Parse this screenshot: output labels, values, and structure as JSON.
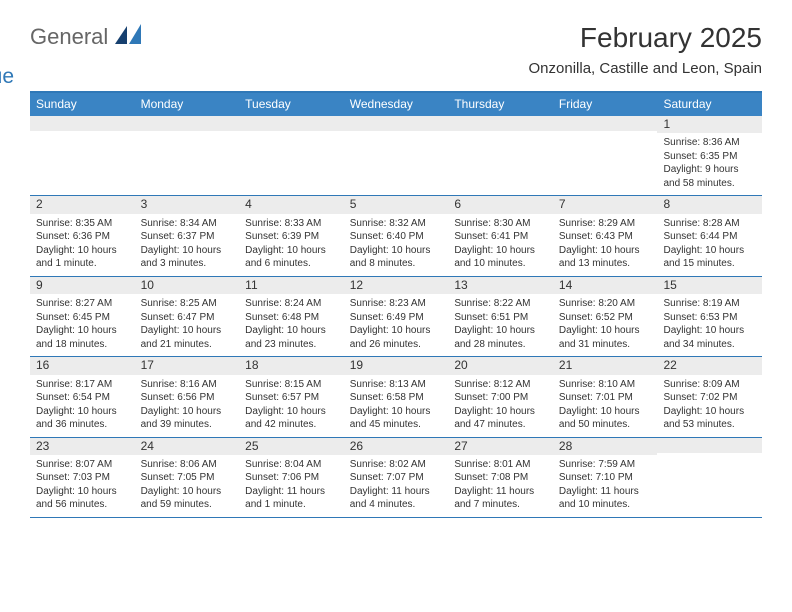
{
  "brand": {
    "word1": "General",
    "word2": "Blue"
  },
  "colors": {
    "header_bg": "#3a84c4",
    "header_border": "#2f78b7",
    "daynum_bg": "#ececec",
    "text": "#333333",
    "logo_gray": "#666666",
    "logo_blue": "#2f78b7",
    "page_bg": "#ffffff"
  },
  "title": "February 2025",
  "location": "Onzonilla, Castille and Leon, Spain",
  "day_names": [
    "Sunday",
    "Monday",
    "Tuesday",
    "Wednesday",
    "Thursday",
    "Friday",
    "Saturday"
  ],
  "weeks": [
    [
      {
        "n": "",
        "sr": "",
        "ss": "",
        "dl": ""
      },
      {
        "n": "",
        "sr": "",
        "ss": "",
        "dl": ""
      },
      {
        "n": "",
        "sr": "",
        "ss": "",
        "dl": ""
      },
      {
        "n": "",
        "sr": "",
        "ss": "",
        "dl": ""
      },
      {
        "n": "",
        "sr": "",
        "ss": "",
        "dl": ""
      },
      {
        "n": "",
        "sr": "",
        "ss": "",
        "dl": ""
      },
      {
        "n": "1",
        "sr": "Sunrise: 8:36 AM",
        "ss": "Sunset: 6:35 PM",
        "dl": "Daylight: 9 hours and 58 minutes."
      }
    ],
    [
      {
        "n": "2",
        "sr": "Sunrise: 8:35 AM",
        "ss": "Sunset: 6:36 PM",
        "dl": "Daylight: 10 hours and 1 minute."
      },
      {
        "n": "3",
        "sr": "Sunrise: 8:34 AM",
        "ss": "Sunset: 6:37 PM",
        "dl": "Daylight: 10 hours and 3 minutes."
      },
      {
        "n": "4",
        "sr": "Sunrise: 8:33 AM",
        "ss": "Sunset: 6:39 PM",
        "dl": "Daylight: 10 hours and 6 minutes."
      },
      {
        "n": "5",
        "sr": "Sunrise: 8:32 AM",
        "ss": "Sunset: 6:40 PM",
        "dl": "Daylight: 10 hours and 8 minutes."
      },
      {
        "n": "6",
        "sr": "Sunrise: 8:30 AM",
        "ss": "Sunset: 6:41 PM",
        "dl": "Daylight: 10 hours and 10 minutes."
      },
      {
        "n": "7",
        "sr": "Sunrise: 8:29 AM",
        "ss": "Sunset: 6:43 PM",
        "dl": "Daylight: 10 hours and 13 minutes."
      },
      {
        "n": "8",
        "sr": "Sunrise: 8:28 AM",
        "ss": "Sunset: 6:44 PM",
        "dl": "Daylight: 10 hours and 15 minutes."
      }
    ],
    [
      {
        "n": "9",
        "sr": "Sunrise: 8:27 AM",
        "ss": "Sunset: 6:45 PM",
        "dl": "Daylight: 10 hours and 18 minutes."
      },
      {
        "n": "10",
        "sr": "Sunrise: 8:25 AM",
        "ss": "Sunset: 6:47 PM",
        "dl": "Daylight: 10 hours and 21 minutes."
      },
      {
        "n": "11",
        "sr": "Sunrise: 8:24 AM",
        "ss": "Sunset: 6:48 PM",
        "dl": "Daylight: 10 hours and 23 minutes."
      },
      {
        "n": "12",
        "sr": "Sunrise: 8:23 AM",
        "ss": "Sunset: 6:49 PM",
        "dl": "Daylight: 10 hours and 26 minutes."
      },
      {
        "n": "13",
        "sr": "Sunrise: 8:22 AM",
        "ss": "Sunset: 6:51 PM",
        "dl": "Daylight: 10 hours and 28 minutes."
      },
      {
        "n": "14",
        "sr": "Sunrise: 8:20 AM",
        "ss": "Sunset: 6:52 PM",
        "dl": "Daylight: 10 hours and 31 minutes."
      },
      {
        "n": "15",
        "sr": "Sunrise: 8:19 AM",
        "ss": "Sunset: 6:53 PM",
        "dl": "Daylight: 10 hours and 34 minutes."
      }
    ],
    [
      {
        "n": "16",
        "sr": "Sunrise: 8:17 AM",
        "ss": "Sunset: 6:54 PM",
        "dl": "Daylight: 10 hours and 36 minutes."
      },
      {
        "n": "17",
        "sr": "Sunrise: 8:16 AM",
        "ss": "Sunset: 6:56 PM",
        "dl": "Daylight: 10 hours and 39 minutes."
      },
      {
        "n": "18",
        "sr": "Sunrise: 8:15 AM",
        "ss": "Sunset: 6:57 PM",
        "dl": "Daylight: 10 hours and 42 minutes."
      },
      {
        "n": "19",
        "sr": "Sunrise: 8:13 AM",
        "ss": "Sunset: 6:58 PM",
        "dl": "Daylight: 10 hours and 45 minutes."
      },
      {
        "n": "20",
        "sr": "Sunrise: 8:12 AM",
        "ss": "Sunset: 7:00 PM",
        "dl": "Daylight: 10 hours and 47 minutes."
      },
      {
        "n": "21",
        "sr": "Sunrise: 8:10 AM",
        "ss": "Sunset: 7:01 PM",
        "dl": "Daylight: 10 hours and 50 minutes."
      },
      {
        "n": "22",
        "sr": "Sunrise: 8:09 AM",
        "ss": "Sunset: 7:02 PM",
        "dl": "Daylight: 10 hours and 53 minutes."
      }
    ],
    [
      {
        "n": "23",
        "sr": "Sunrise: 8:07 AM",
        "ss": "Sunset: 7:03 PM",
        "dl": "Daylight: 10 hours and 56 minutes."
      },
      {
        "n": "24",
        "sr": "Sunrise: 8:06 AM",
        "ss": "Sunset: 7:05 PM",
        "dl": "Daylight: 10 hours and 59 minutes."
      },
      {
        "n": "25",
        "sr": "Sunrise: 8:04 AM",
        "ss": "Sunset: 7:06 PM",
        "dl": "Daylight: 11 hours and 1 minute."
      },
      {
        "n": "26",
        "sr": "Sunrise: 8:02 AM",
        "ss": "Sunset: 7:07 PM",
        "dl": "Daylight: 11 hours and 4 minutes."
      },
      {
        "n": "27",
        "sr": "Sunrise: 8:01 AM",
        "ss": "Sunset: 7:08 PM",
        "dl": "Daylight: 11 hours and 7 minutes."
      },
      {
        "n": "28",
        "sr": "Sunrise: 7:59 AM",
        "ss": "Sunset: 7:10 PM",
        "dl": "Daylight: 11 hours and 10 minutes."
      },
      {
        "n": "",
        "sr": "",
        "ss": "",
        "dl": ""
      }
    ]
  ]
}
